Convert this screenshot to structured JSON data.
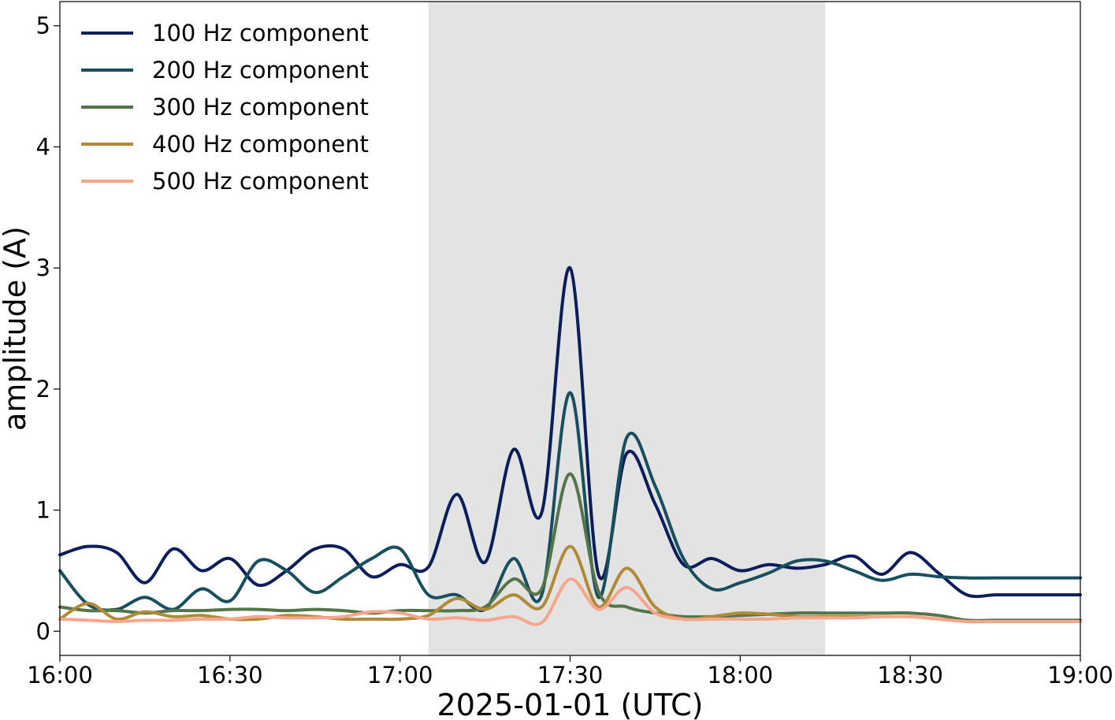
{
  "chart_data": {
    "type": "line",
    "xlabel": "2025-01-01 (UTC)",
    "ylabel": "amplitude (A)",
    "x_ticks": [
      "16:00",
      "16:30",
      "17:00",
      "17:30",
      "18:00",
      "18:30",
      "19:00"
    ],
    "y_ticks": [
      "0",
      "1",
      "2",
      "3",
      "4",
      "5"
    ],
    "xlim": [
      "16:00",
      "19:00"
    ],
    "ylim": [
      -0.2,
      5.2
    ],
    "grid": false,
    "legend_position": "top-left",
    "shaded_region": {
      "start": "17:05",
      "end": "18:15",
      "color": "#e3e3e3"
    },
    "x": [
      "16:00",
      "16:05",
      "16:10",
      "16:15",
      "16:20",
      "16:25",
      "16:30",
      "16:35",
      "16:40",
      "16:45",
      "16:50",
      "16:55",
      "17:00",
      "17:05",
      "17:10",
      "17:15",
      "17:20",
      "17:25",
      "17:30",
      "17:35",
      "17:40",
      "17:45",
      "17:50",
      "17:55",
      "18:00",
      "18:05",
      "18:10",
      "18:15",
      "18:20",
      "18:25",
      "18:30",
      "18:35",
      "18:40",
      "18:45",
      "18:50",
      "18:55",
      "19:00"
    ],
    "series": [
      {
        "name": "100 Hz component",
        "color": "#0b1d5a",
        "values": [
          0.63,
          0.7,
          0.65,
          0.4,
          0.68,
          0.5,
          0.6,
          0.38,
          0.5,
          0.68,
          0.68,
          0.45,
          0.55,
          0.53,
          1.13,
          0.57,
          1.5,
          0.98,
          3.0,
          0.47,
          1.47,
          1.05,
          0.55,
          0.6,
          0.5,
          0.55,
          0.52,
          0.55,
          0.62,
          0.47,
          0.65,
          0.48,
          0.3,
          0.3,
          0.3,
          0.3,
          0.3
        ]
      },
      {
        "name": "200 Hz component",
        "color": "#174f5f",
        "values": [
          0.5,
          0.22,
          0.18,
          0.28,
          0.18,
          0.35,
          0.25,
          0.58,
          0.5,
          0.32,
          0.45,
          0.6,
          0.68,
          0.3,
          0.3,
          0.18,
          0.6,
          0.3,
          1.97,
          0.28,
          1.6,
          1.2,
          0.6,
          0.35,
          0.4,
          0.48,
          0.58,
          0.58,
          0.5,
          0.42,
          0.47,
          0.45,
          0.44,
          0.44,
          0.44,
          0.44,
          0.44
        ]
      },
      {
        "name": "300 Hz component",
        "color": "#547549",
        "values": [
          0.2,
          0.17,
          0.17,
          0.15,
          0.17,
          0.17,
          0.18,
          0.18,
          0.17,
          0.18,
          0.17,
          0.15,
          0.17,
          0.17,
          0.17,
          0.2,
          0.43,
          0.35,
          1.3,
          0.33,
          0.2,
          0.15,
          0.12,
          0.12,
          0.13,
          0.14,
          0.15,
          0.15,
          0.15,
          0.15,
          0.15,
          0.13,
          0.09,
          0.09,
          0.09,
          0.09,
          0.09
        ]
      },
      {
        "name": "400 Hz component",
        "color": "#b08a37",
        "values": [
          0.1,
          0.23,
          0.1,
          0.16,
          0.12,
          0.13,
          0.1,
          0.1,
          0.13,
          0.12,
          0.1,
          0.1,
          0.1,
          0.13,
          0.27,
          0.18,
          0.3,
          0.2,
          0.7,
          0.2,
          0.52,
          0.2,
          0.1,
          0.12,
          0.15,
          0.14,
          0.12,
          0.12,
          0.12,
          0.12,
          0.12,
          0.1,
          0.08,
          0.08,
          0.08,
          0.08,
          0.08
        ]
      },
      {
        "name": "500 Hz component",
        "color": "#f7a68e",
        "values": [
          0.1,
          0.09,
          0.08,
          0.09,
          0.09,
          0.1,
          0.1,
          0.12,
          0.11,
          0.11,
          0.12,
          0.16,
          0.15,
          0.1,
          0.11,
          0.09,
          0.12,
          0.07,
          0.43,
          0.18,
          0.36,
          0.15,
          0.1,
          0.1,
          0.1,
          0.1,
          0.11,
          0.11,
          0.11,
          0.12,
          0.12,
          0.1,
          0.08,
          0.08,
          0.08,
          0.08,
          0.08
        ]
      }
    ]
  }
}
